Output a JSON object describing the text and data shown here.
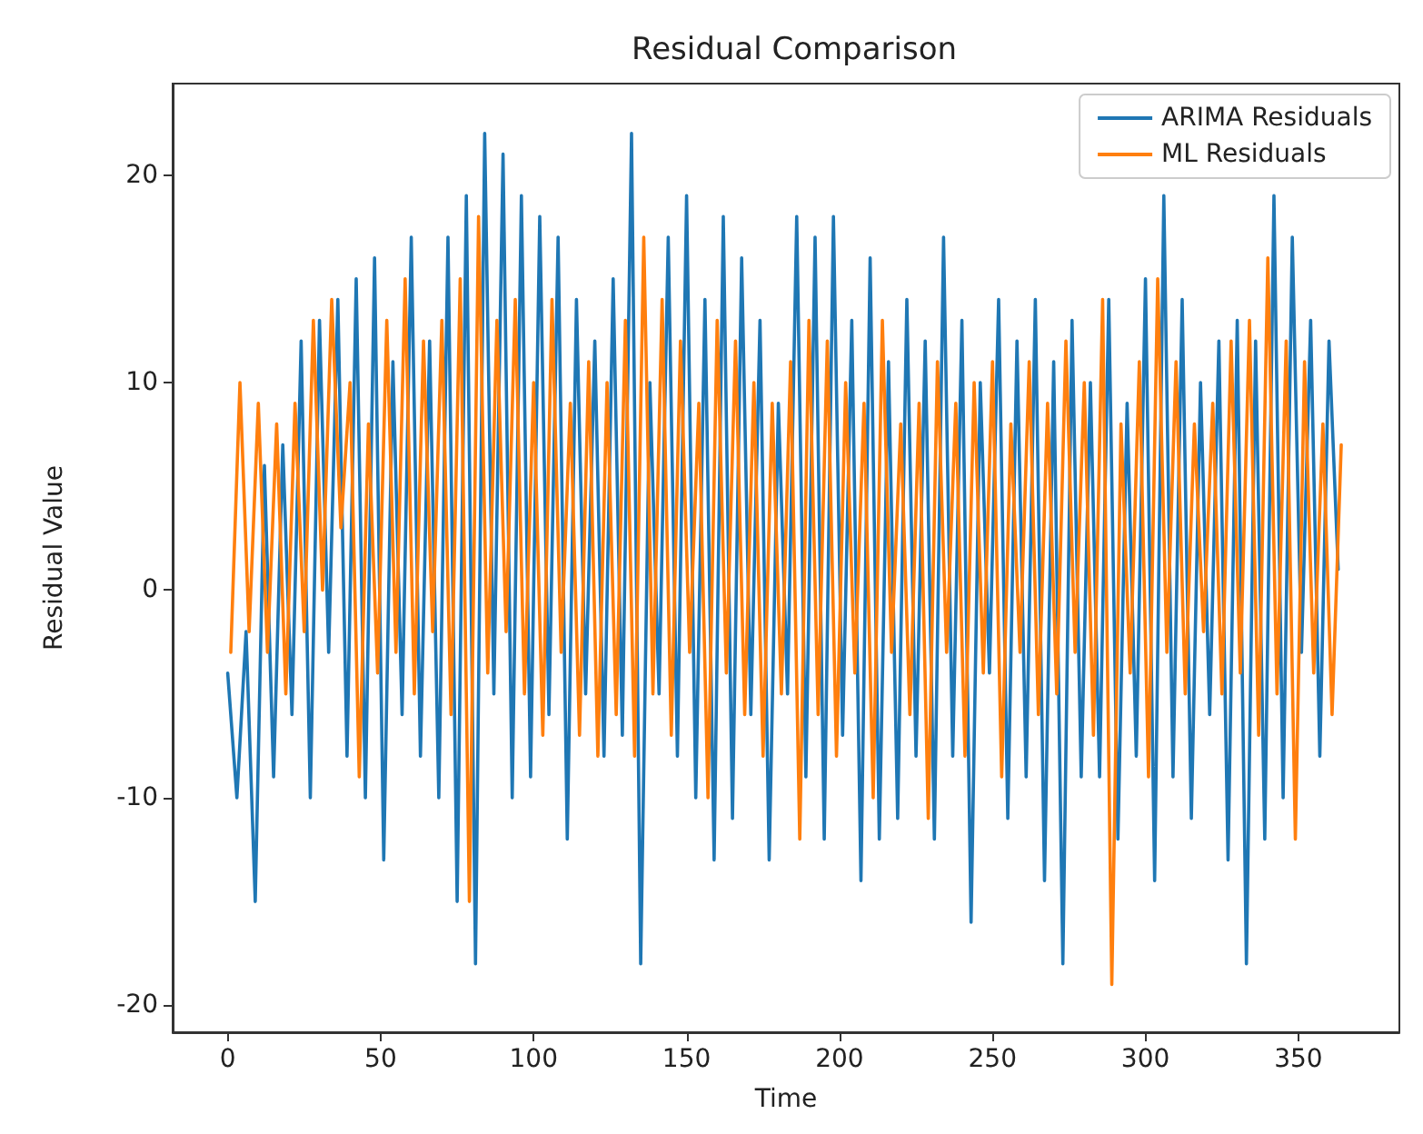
{
  "chart_data": {
    "type": "line",
    "title": "Residual Comparison",
    "xlabel": "Time",
    "ylabel": "Residual Value",
    "xlim": [
      -18,
      383
    ],
    "xticks": [
      0,
      50,
      100,
      150,
      200,
      250,
      300,
      350
    ],
    "ylim": [
      -21.3,
      24.4
    ],
    "yticks": [
      -20,
      -10,
      0,
      10,
      20
    ],
    "grid": false,
    "legend": "top right",
    "marker": "none",
    "line_style": "solid",
    "series": [
      {
        "name": "ARIMA Residuals",
        "color": "#1f77b4",
        "x": [
          0,
          3,
          6,
          9,
          12,
          15,
          18,
          21,
          24,
          27,
          30,
          33,
          36,
          39,
          42,
          45,
          48,
          51,
          54,
          57,
          60,
          63,
          66,
          69,
          72,
          75,
          78,
          81,
          84,
          87,
          90,
          93,
          96,
          99,
          102,
          105,
          108,
          111,
          114,
          117,
          120,
          123,
          126,
          129,
          132,
          135,
          138,
          141,
          144,
          147,
          150,
          153,
          156,
          159,
          162,
          165,
          168,
          171,
          174,
          177,
          180,
          183,
          186,
          189,
          192,
          195,
          198,
          201,
          204,
          207,
          210,
          213,
          216,
          219,
          222,
          225,
          228,
          231,
          234,
          237,
          240,
          243,
          246,
          249,
          252,
          255,
          258,
          261,
          264,
          267,
          270,
          273,
          276,
          279,
          282,
          285,
          288,
          291,
          294,
          297,
          300,
          303,
          306,
          309,
          312,
          315,
          318,
          321,
          324,
          327,
          330,
          333,
          336,
          339,
          342,
          345,
          348,
          351,
          354,
          357,
          360,
          363
        ],
        "values": [
          -4,
          -10,
          -2,
          -15,
          6,
          -9,
          7,
          -6,
          12,
          -10,
          13,
          -3,
          14,
          -8,
          15,
          -10,
          16,
          -13,
          11,
          -6,
          17,
          -8,
          12,
          -10,
          17,
          -15,
          19,
          -18,
          22,
          -5,
          21,
          -10,
          19,
          -9,
          18,
          -6,
          17,
          -12,
          14,
          -5,
          12,
          -8,
          15,
          -7,
          22,
          -18,
          10,
          -5,
          17,
          -8,
          19,
          -10,
          14,
          -13,
          18,
          -11,
          16,
          -6,
          13,
          -13,
          9,
          -5,
          18,
          -9,
          17,
          -12,
          18,
          -7,
          13,
          -14,
          16,
          -12,
          11,
          -11,
          14,
          -8,
          12,
          -12,
          17,
          -8,
          13,
          -16,
          10,
          -4,
          14,
          -11,
          12,
          -9,
          14,
          -14,
          11,
          -18,
          13,
          -9,
          10,
          -9,
          14,
          -12,
          9,
          -8,
          15,
          -14,
          19,
          -9,
          14,
          -11,
          10,
          -6,
          12,
          -13,
          13,
          -18,
          12,
          -12,
          19,
          -10,
          17,
          -3,
          13,
          -8,
          12,
          1
        ]
      },
      {
        "name": "ML Residuals",
        "color": "#ff7f0e",
        "x": [
          1,
          4,
          7,
          10,
          13,
          16,
          19,
          22,
          25,
          28,
          31,
          34,
          37,
          40,
          43,
          46,
          49,
          52,
          55,
          58,
          61,
          64,
          67,
          70,
          73,
          76,
          79,
          82,
          85,
          88,
          91,
          94,
          97,
          100,
          103,
          106,
          109,
          112,
          115,
          118,
          121,
          124,
          127,
          130,
          133,
          136,
          139,
          142,
          145,
          148,
          151,
          154,
          157,
          160,
          163,
          166,
          169,
          172,
          175,
          178,
          181,
          184,
          187,
          190,
          193,
          196,
          199,
          202,
          205,
          208,
          211,
          214,
          217,
          220,
          223,
          226,
          229,
          232,
          235,
          238,
          241,
          244,
          247,
          250,
          253,
          256,
          259,
          262,
          265,
          268,
          271,
          274,
          277,
          280,
          283,
          286,
          289,
          292,
          295,
          298,
          301,
          304,
          307,
          310,
          313,
          316,
          319,
          322,
          325,
          328,
          331,
          334,
          337,
          340,
          343,
          346,
          349,
          352,
          355,
          358,
          361,
          364
        ],
        "values": [
          -3,
          10,
          -2,
          9,
          -3,
          8,
          -5,
          9,
          -2,
          13,
          0,
          14,
          3,
          10,
          -9,
          8,
          -4,
          13,
          -3,
          15,
          -5,
          12,
          -2,
          13,
          -6,
          15,
          -15,
          18,
          -4,
          13,
          -2,
          14,
          -5,
          10,
          -7,
          14,
          -3,
          9,
          -7,
          11,
          -8,
          10,
          -6,
          13,
          -8,
          17,
          -5,
          14,
          -7,
          12,
          -3,
          9,
          -10,
          13,
          -4,
          12,
          -6,
          10,
          -8,
          9,
          -5,
          11,
          -12,
          13,
          -6,
          12,
          -8,
          10,
          -4,
          9,
          -10,
          13,
          -3,
          8,
          -6,
          9,
          -11,
          11,
          -3,
          9,
          -8,
          10,
          -4,
          11,
          -9,
          8,
          -3,
          11,
          -6,
          9,
          -5,
          12,
          -3,
          10,
          -7,
          14,
          -19,
          8,
          -4,
          11,
          -9,
          15,
          -3,
          11,
          -5,
          8,
          -2,
          9,
          -5,
          12,
          -4,
          13,
          -7,
          16,
          -5,
          12,
          -12,
          11,
          -4,
          8,
          -6,
          7
        ]
      }
    ]
  }
}
